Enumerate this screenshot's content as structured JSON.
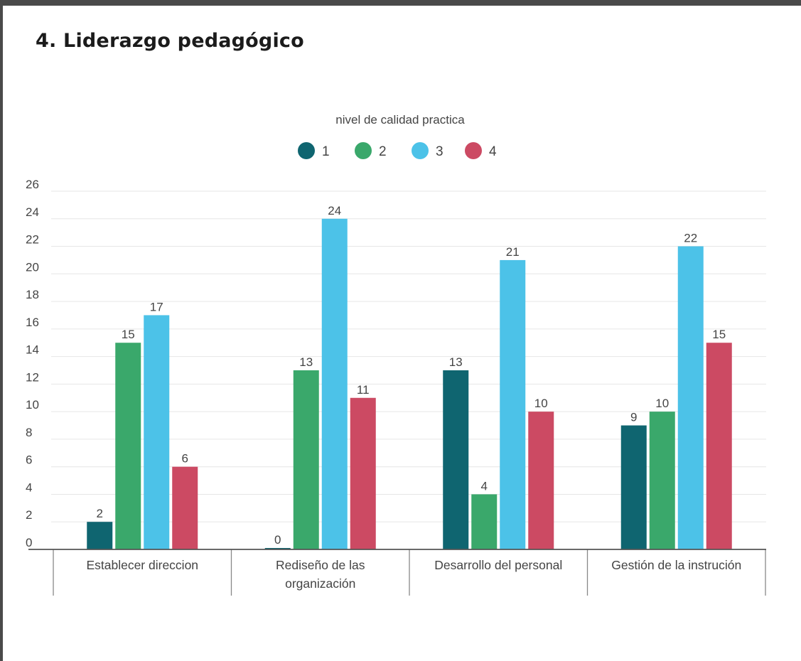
{
  "page": {
    "title": "4. Liderazgo pedagógico"
  },
  "chart_data": {
    "type": "bar",
    "legend_title": "nivel de calidad practica",
    "legend_placement": "top-center",
    "categories": [
      [
        "Establecer direccion"
      ],
      [
        "Rediseño de las",
        "organización"
      ],
      [
        "Desarrollo del personal"
      ],
      [
        "Gestión de la instrución"
      ]
    ],
    "series": [
      {
        "name": "1",
        "color": "#0f6570",
        "values": [
          2,
          0,
          13,
          9
        ]
      },
      {
        "name": "2",
        "color": "#3aa86b",
        "values": [
          15,
          13,
          4,
          10
        ]
      },
      {
        "name": "3",
        "color": "#4cc2e8",
        "values": [
          17,
          24,
          21,
          22
        ]
      },
      {
        "name": "4",
        "color": "#cc4a63",
        "values": [
          6,
          11,
          10,
          15
        ]
      }
    ],
    "ylim": [
      0,
      26
    ],
    "yticks": [
      0,
      2,
      4,
      6,
      8,
      10,
      12,
      14,
      16,
      18,
      20,
      22,
      24,
      26
    ],
    "grid": true,
    "data_labels": true
  }
}
